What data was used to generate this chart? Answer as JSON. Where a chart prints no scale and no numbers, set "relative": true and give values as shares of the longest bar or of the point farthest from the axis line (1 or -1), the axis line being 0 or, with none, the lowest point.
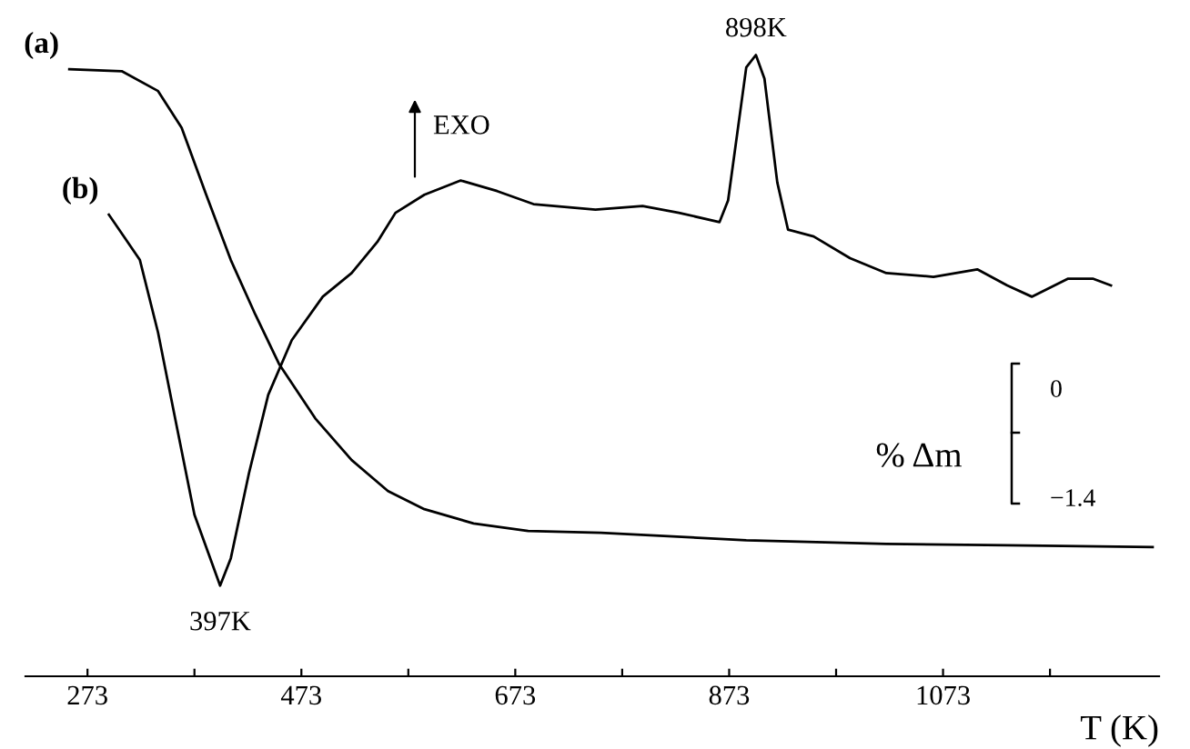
{
  "chart_data": {
    "type": "line",
    "relative": true,
    "xlabel": "T (K)",
    "xlim": [
      215,
      1275
    ],
    "xticks": [
      273,
      {
        "value": 373,
        "label": null
      },
      473,
      {
        "value": 573,
        "label": null
      },
      673,
      {
        "value": 773,
        "label": null
      },
      873,
      {
        "value": 973,
        "label": null
      },
      1073,
      {
        "value": 1173,
        "label": null
      }
    ],
    "series": [
      {
        "name": "(a)",
        "color": "#000000",
        "x": [
          256,
          305,
          339,
          361,
          384,
          407,
          430,
          452,
          486,
          520,
          554,
          588,
          634,
          685,
          753,
          889,
          1020,
          1133,
          1269
        ],
        "values": [
          0.977,
          0.974,
          0.942,
          0.883,
          0.775,
          0.67,
          0.582,
          0.503,
          0.415,
          0.348,
          0.298,
          0.269,
          0.246,
          0.234,
          0.231,
          0.219,
          0.213,
          0.211,
          0.208
        ]
      },
      {
        "name": "(b)",
        "color": "#000000",
        "x": [
          293,
          305,
          322,
          339,
          356,
          373,
          397,
          407,
          424,
          442,
          464,
          493,
          520,
          544,
          561,
          588,
          622,
          656,
          690,
          748,
          792,
          826,
          864,
          872,
          889,
          898,
          906,
          918,
          928,
          952,
          986,
          1020,
          1064,
          1105,
          1133,
          1156,
          1190,
          1213,
          1230
        ],
        "values": [
          0.743,
          0.713,
          0.67,
          0.553,
          0.406,
          0.26,
          0.146,
          0.19,
          0.327,
          0.453,
          0.541,
          0.611,
          0.649,
          0.699,
          0.746,
          0.775,
          0.798,
          0.781,
          0.76,
          0.751,
          0.757,
          0.746,
          0.731,
          0.766,
          0.98,
          1,
          0.962,
          0.795,
          0.719,
          0.708,
          0.673,
          0.649,
          0.643,
          0.655,
          0.629,
          0.611,
          0.64,
          0.64,
          0.629
        ]
      }
    ],
    "annotations": [
      {
        "text": "397K",
        "x": 397,
        "y": 0.146
      },
      {
        "text": "898K",
        "x": 898,
        "y": 1
      },
      "EXO",
      "% Δm",
      "0",
      "−1.4"
    ],
    "grid": false
  }
}
